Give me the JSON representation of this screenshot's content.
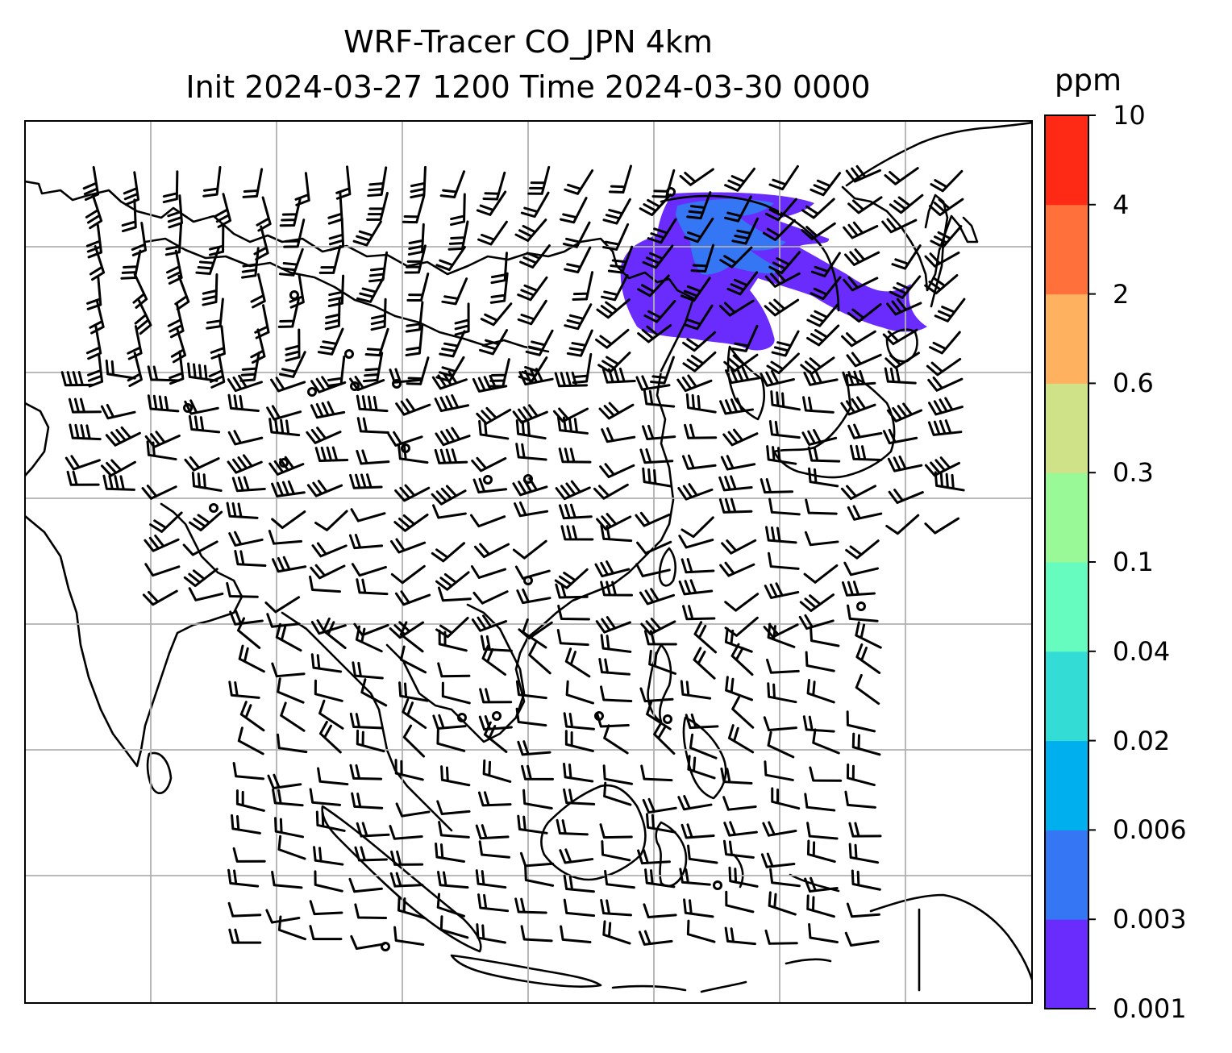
{
  "title": {
    "line1": "WRF-Tracer CO_JPN 4km",
    "line2": "Init 2024-03-27 1200 Time 2024-03-30 0000"
  },
  "colorbar": {
    "unit": "ppm",
    "levels": [
      "0.001",
      "0.003",
      "0.006",
      "0.02",
      "0.04",
      "0.1",
      "0.3",
      "0.6",
      "2",
      "4",
      "10"
    ],
    "colors": [
      "#6a2bfd",
      "#3476f4",
      "#00b0ee",
      "#33ddd6",
      "#66fbbf",
      "#99f997",
      "#cfe288",
      "#feb15f",
      "#ff703b",
      "#fe2a16"
    ]
  },
  "map": {
    "coastline_color": "#000000",
    "gridline_color": "#b0b0b0",
    "tracer_color": "#6a2bfd",
    "tracer_core_color": "#3476f4"
  }
}
